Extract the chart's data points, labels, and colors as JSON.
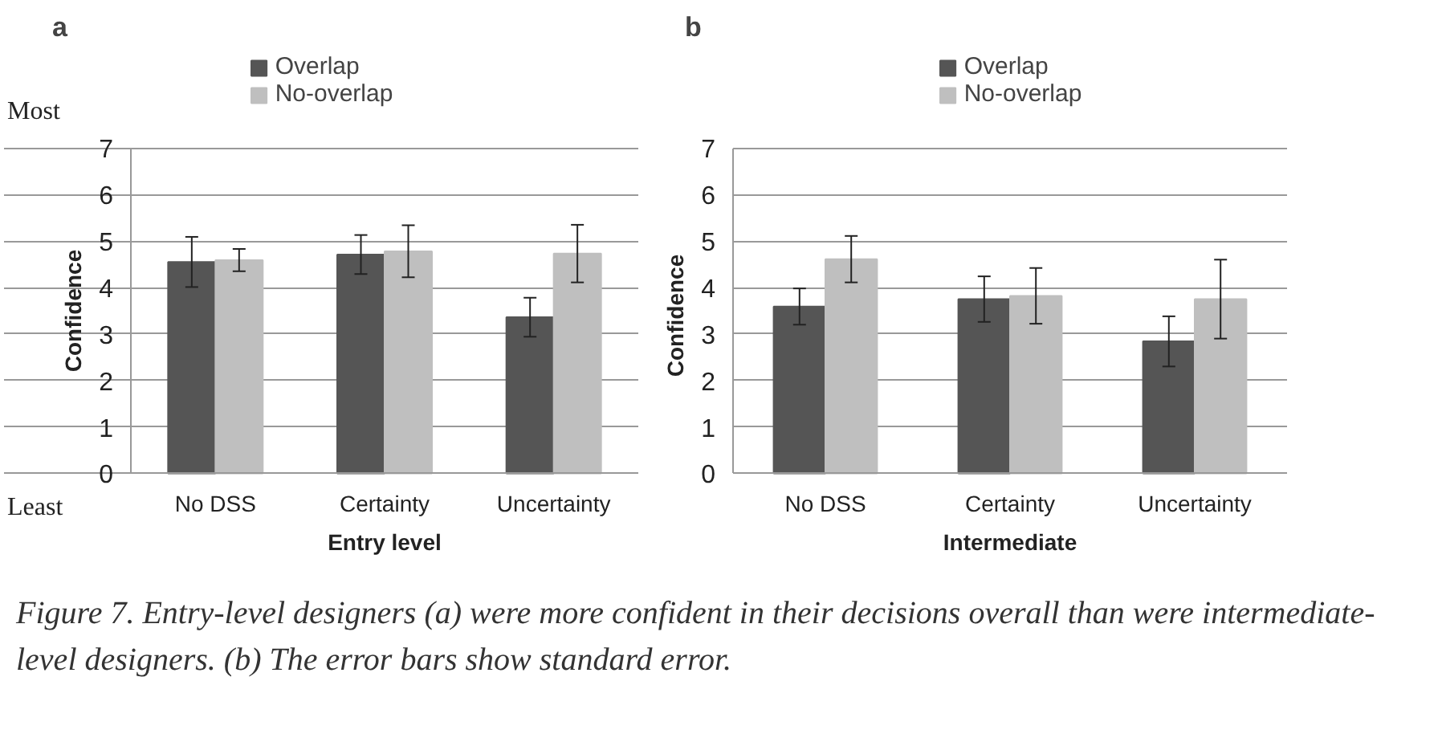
{
  "chart_data": [
    {
      "type": "bar",
      "title": "a",
      "xlabel": "Entry level",
      "ylabel": "Confidence",
      "categories": [
        "No DSS",
        "Certainty",
        "Uncertainty"
      ],
      "series": [
        {
          "name": "Overlap",
          "color": "#555555",
          "values": [
            4.55,
            4.71,
            3.36
          ],
          "errors": [
            0.54,
            0.42,
            0.42
          ]
        },
        {
          "name": "No-overlap",
          "color": "#bfbfbf",
          "values": [
            4.59,
            4.78,
            4.73
          ],
          "errors": [
            0.24,
            0.56,
            0.62
          ]
        }
      ],
      "ylim": [
        0,
        7
      ],
      "yticks": [
        0,
        1,
        2,
        3,
        4,
        5,
        6,
        7
      ],
      "grid": "y",
      "legend": "top",
      "annotations": [
        "Most",
        "Least",
        "Figure 7. Entry-level designers (a) were more confident in their decisions overall than were intermediate-level designers. (b) The error bars show standard error."
      ]
    },
    {
      "type": "bar",
      "title": "b",
      "xlabel": "Intermediate",
      "ylabel": "Confidence",
      "categories": [
        "No DSS",
        "Certainty",
        "Uncertainty"
      ],
      "series": [
        {
          "name": "Overlap",
          "color": "#555555",
          "values": [
            3.59,
            3.75,
            2.84
          ],
          "errors": [
            0.39,
            0.49,
            0.54
          ]
        },
        {
          "name": "No-overlap",
          "color": "#bfbfbf",
          "values": [
            4.61,
            3.82,
            3.75
          ],
          "errors": [
            0.5,
            0.6,
            0.85
          ]
        }
      ],
      "ylim": [
        0,
        7
      ],
      "yticks": [
        0,
        1,
        2,
        3,
        4,
        5,
        6,
        7
      ],
      "grid": "y",
      "legend": "top"
    }
  ]
}
